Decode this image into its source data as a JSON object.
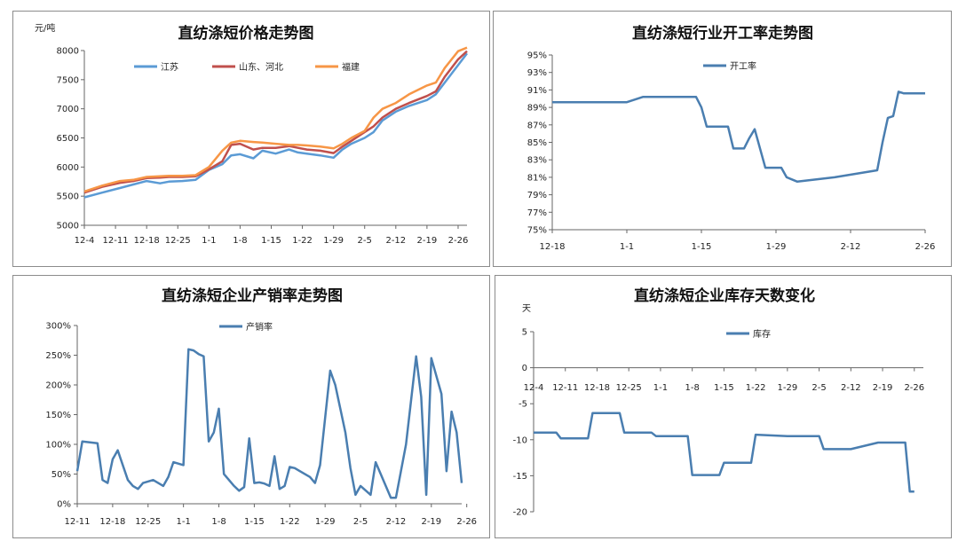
{
  "chart_data": [
    {
      "id": "price",
      "type": "line",
      "title": "直纺涤短价格走势图",
      "ylabel": "元/吨",
      "ylim": [
        5000,
        8000
      ],
      "yticks": [
        5000,
        5500,
        6000,
        6500,
        7000,
        7500,
        8000
      ],
      "ytick_labels": [
        "5000",
        "5500",
        "6000",
        "6500",
        "7000",
        "7500",
        "8000"
      ],
      "x_index_range": [
        0,
        86
      ],
      "xtick_labels": [
        "12-4",
        "12-11",
        "12-18",
        "12-25",
        "1-1",
        "1-8",
        "1-15",
        "1-22",
        "1-29",
        "2-5",
        "2-12",
        "2-19",
        "2-26"
      ],
      "xtick_positions": [
        0,
        7,
        14,
        21,
        28,
        35,
        42,
        49,
        56,
        63,
        70,
        77,
        84
      ],
      "legend_position": "top",
      "series": [
        {
          "name": "江苏",
          "color": "#5b9bd5",
          "x": [
            0,
            4,
            8,
            11,
            14,
            17,
            19,
            22,
            25,
            28,
            31,
            33,
            35,
            38,
            40,
            43,
            46,
            48,
            50,
            53,
            56,
            58,
            60,
            63,
            65,
            67,
            70,
            73,
            77,
            79,
            81,
            84,
            86
          ],
          "values": [
            5480,
            5560,
            5640,
            5700,
            5760,
            5720,
            5750,
            5760,
            5780,
            5950,
            6050,
            6200,
            6220,
            6150,
            6280,
            6230,
            6300,
            6250,
            6230,
            6200,
            6160,
            6300,
            6400,
            6500,
            6600,
            6800,
            6950,
            7050,
            7150,
            7250,
            7450,
            7750,
            7950
          ]
        },
        {
          "name": "山东、河北",
          "color": "#c0504d",
          "x": [
            0,
            4,
            8,
            11,
            14,
            17,
            19,
            22,
            25,
            28,
            31,
            33,
            35,
            38,
            40,
            43,
            46,
            48,
            50,
            53,
            56,
            58,
            60,
            63,
            65,
            67,
            70,
            73,
            77,
            79,
            81,
            84,
            86
          ],
          "values": [
            5560,
            5660,
            5730,
            5760,
            5810,
            5820,
            5830,
            5830,
            5840,
            5960,
            6100,
            6380,
            6400,
            6300,
            6330,
            6330,
            6360,
            6330,
            6300,
            6280,
            6240,
            6350,
            6450,
            6600,
            6700,
            6850,
            7000,
            7100,
            7220,
            7300,
            7550,
            7850,
            7990
          ]
        },
        {
          "name": "福建",
          "color": "#f79646",
          "x": [
            0,
            4,
            8,
            11,
            14,
            17,
            19,
            22,
            25,
            28,
            31,
            33,
            35,
            38,
            40,
            43,
            46,
            48,
            50,
            53,
            56,
            58,
            60,
            63,
            65,
            67,
            70,
            73,
            77,
            79,
            81,
            84,
            86
          ],
          "values": [
            5580,
            5680,
            5760,
            5780,
            5830,
            5840,
            5850,
            5850,
            5860,
            6000,
            6280,
            6420,
            6450,
            6430,
            6420,
            6400,
            6380,
            6380,
            6370,
            6350,
            6320,
            6400,
            6500,
            6620,
            6850,
            7000,
            7100,
            7250,
            7400,
            7450,
            7700,
            7990,
            8050
          ]
        }
      ]
    },
    {
      "id": "operating",
      "type": "line",
      "title": "直纺涤短行业开工率走势图",
      "ylim": [
        75,
        95
      ],
      "yticks": [
        75,
        77,
        79,
        81,
        83,
        85,
        87,
        89,
        91,
        93,
        95
      ],
      "ytick_labels": [
        "75%",
        "77%",
        "79%",
        "81%",
        "83%",
        "85%",
        "87%",
        "89%",
        "91%",
        "93%",
        "95%"
      ],
      "x_index_range": [
        0,
        70
      ],
      "xtick_labels": [
        "12-18",
        "1-1",
        "1-15",
        "1-29",
        "2-12",
        "2-26"
      ],
      "xtick_positions": [
        0,
        14,
        28,
        42,
        56,
        70
      ],
      "legend_position": "top-left",
      "series": [
        {
          "name": "开工率",
          "color": "#4a7eb0",
          "x": [
            0,
            14,
            17,
            27,
            28,
            29,
            33,
            34,
            36,
            37,
            38,
            40,
            43,
            44,
            46,
            53,
            61,
            62,
            63,
            64,
            65,
            66,
            68,
            70
          ],
          "values": [
            89.6,
            89.6,
            90.2,
            90.2,
            89.0,
            86.8,
            86.8,
            84.3,
            84.3,
            85.5,
            86.5,
            82.1,
            82.1,
            81.0,
            80.5,
            81.0,
            81.8,
            85.0,
            87.8,
            88.0,
            90.8,
            90.6,
            90.6,
            90.6
          ]
        }
      ]
    },
    {
      "id": "sales",
      "type": "line",
      "title": "直纺涤短企业产销率走势图",
      "ylim": [
        0,
        300
      ],
      "yticks": [
        0,
        50,
        100,
        150,
        200,
        250,
        300
      ],
      "ytick_labels": [
        "0%",
        "50%",
        "100%",
        "150%",
        "200%",
        "250%",
        "300%"
      ],
      "x_index_range": [
        0,
        76
      ],
      "xtick_labels": [
        "12-11",
        "12-18",
        "12-25",
        "1-1",
        "1-8",
        "1-15",
        "1-22",
        "1-29",
        "2-5",
        "2-12",
        "2-19",
        "2-26"
      ],
      "xtick_positions": [
        0,
        7,
        14,
        21,
        28,
        35,
        42,
        49,
        56,
        63,
        70,
        77
      ],
      "legend_position": "top",
      "series": [
        {
          "name": "产销率",
          "color": "#4a7eb0",
          "x": [
            0,
            1,
            4,
            5,
            6,
            7,
            8,
            10,
            11,
            12,
            13,
            15,
            17,
            18,
            19,
            21,
            22,
            23,
            24,
            25,
            26,
            27,
            28,
            29,
            30,
            31,
            32,
            33,
            34,
            35,
            36,
            37,
            38,
            39,
            40,
            41,
            42,
            43,
            44,
            46,
            47,
            48,
            50,
            51,
            52,
            53,
            54,
            55,
            56,
            58,
            59,
            60,
            62,
            63,
            65,
            67,
            68,
            69,
            70,
            72,
            73,
            74,
            75,
            76
          ],
          "values": [
            55,
            105,
            102,
            40,
            35,
            75,
            90,
            40,
            30,
            25,
            35,
            40,
            30,
            45,
            70,
            65,
            260,
            258,
            252,
            248,
            105,
            120,
            160,
            50,
            40,
            30,
            22,
            28,
            110,
            35,
            36,
            34,
            30,
            80,
            25,
            30,
            62,
            60,
            55,
            45,
            35,
            65,
            224,
            200,
            160,
            120,
            60,
            15,
            30,
            15,
            70,
            50,
            10,
            10,
            100,
            248,
            180,
            15,
            245,
            185,
            55,
            155,
            120,
            35
          ]
        }
      ]
    },
    {
      "id": "inventory",
      "type": "line",
      "title": "直纺涤短企业库存天数变化",
      "ylabel": "天",
      "ylim": [
        -20,
        5
      ],
      "yticks": [
        -20,
        -15,
        -10,
        -5,
        0,
        5
      ],
      "ytick_labels": [
        "-20",
        "-15",
        "-10",
        "-5",
        "0",
        "5"
      ],
      "x_index_range": [
        0,
        86
      ],
      "xtick_labels": [
        "12-4",
        "12-11",
        "12-18",
        "12-25",
        "1-1",
        "1-8",
        "1-15",
        "1-22",
        "1-29",
        "2-5",
        "2-12",
        "2-19",
        "2-26"
      ],
      "xtick_positions": [
        0,
        7,
        14,
        21,
        28,
        35,
        42,
        49,
        56,
        63,
        70,
        77,
        84
      ],
      "legend_position": "top",
      "series": [
        {
          "name": "库存",
          "color": "#4a7eb0",
          "x": [
            0,
            5,
            6,
            12,
            13,
            19,
            20,
            26,
            27,
            34,
            35,
            41,
            42,
            48,
            49,
            56,
            57,
            63,
            64,
            70,
            76,
            82,
            83,
            84
          ],
          "values": [
            -9.0,
            -9.0,
            -9.8,
            -9.8,
            -6.3,
            -6.3,
            -9.0,
            -9.0,
            -9.5,
            -9.5,
            -14.9,
            -14.9,
            -13.2,
            -13.2,
            -9.3,
            -9.5,
            -9.5,
            -9.5,
            -11.3,
            -11.3,
            -10.4,
            -10.4,
            -17.2,
            -17.2
          ]
        }
      ]
    }
  ]
}
